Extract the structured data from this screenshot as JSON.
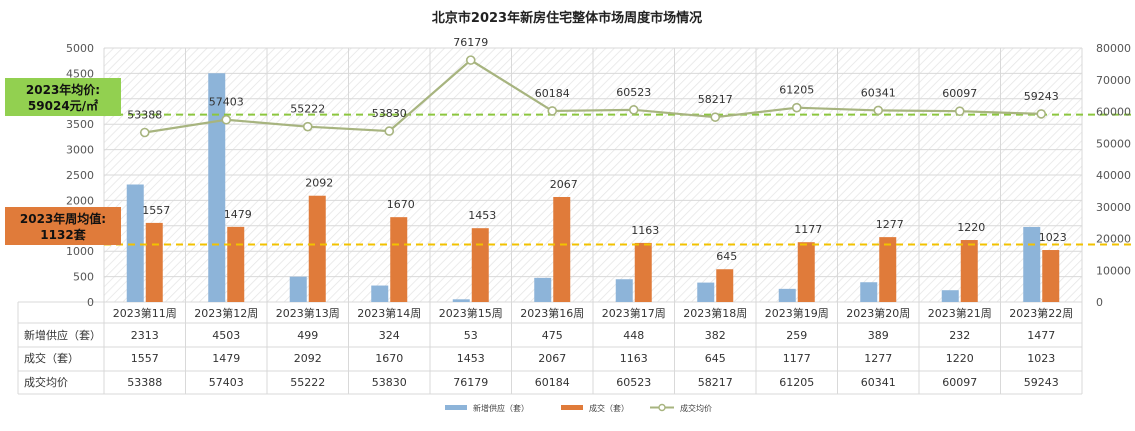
{
  "chart_data": {
    "type": "bar",
    "title": "北京市2023年新房住宅整体市场周度市场情况",
    "categories": [
      "2023第11周",
      "2023第12周",
      "2023第13周",
      "2023第14周",
      "2023第15周",
      "2023第16周",
      "2023第17周",
      "2023第18周",
      "2023第19周",
      "2023第20周",
      "2023第21周",
      "2023第22周"
    ],
    "series": [
      {
        "name": "新增供应（套）",
        "kind": "bar",
        "axis": "left",
        "color": "#8DB4D9",
        "values": [
          2313,
          4503,
          499,
          324,
          53,
          475,
          448,
          382,
          259,
          389,
          232,
          1477
        ]
      },
      {
        "name": "成交（套）",
        "kind": "bar",
        "axis": "left",
        "color": "#E07B3A",
        "values": [
          1557,
          1479,
          2092,
          1670,
          1453,
          2067,
          1163,
          645,
          1177,
          1277,
          1220,
          1023
        ]
      },
      {
        "name": "成交均价",
        "kind": "line",
        "axis": "right",
        "color": "#A7B47F",
        "values": [
          53388,
          57403,
          55222,
          53830,
          76179,
          60184,
          60523,
          58217,
          61205,
          60341,
          60097,
          59243
        ]
      }
    ],
    "y_left": {
      "min": 0,
      "max": 5000,
      "ticks": [
        0,
        500,
        1000,
        1500,
        2000,
        2500,
        3000,
        3500,
        4000,
        4500,
        5000
      ]
    },
    "y_right": {
      "min": 0,
      "max": 80000,
      "ticks": [
        0,
        10000,
        20000,
        30000,
        40000,
        50000,
        60000,
        70000,
        80000
      ]
    },
    "reference_lines": [
      {
        "axis": "right",
        "value": 59024,
        "color": "#8CC63F",
        "label_line1": "2023年均价:",
        "label_line2": "59024元/㎡",
        "label_bg": "#92D050"
      },
      {
        "axis": "left",
        "value": 1132,
        "color": "#F2C200",
        "label_line1": "2023年周均值:",
        "label_line2": "1132套",
        "label_bg": "#E07B3A"
      }
    ],
    "data_labels": {
      "series_index": [
        1,
        2
      ]
    },
    "table": {
      "rows": [
        {
          "label": "新增供应（套）",
          "values": [
            2313,
            4503,
            499,
            324,
            53,
            475,
            448,
            382,
            259,
            389,
            232,
            1477
          ]
        },
        {
          "label": "成交（套）",
          "values": [
            1557,
            1479,
            2092,
            1670,
            1453,
            2067,
            1163,
            645,
            1177,
            1277,
            1220,
            1023
          ]
        },
        {
          "label": "成交均价",
          "values": [
            53388,
            57403,
            55222,
            53830,
            76179,
            60184,
            60523,
            58217,
            61205,
            60341,
            60097,
            59243
          ]
        }
      ]
    },
    "legend": {
      "position": "bottom",
      "items": [
        "新增供应（套）",
        "成交（套）",
        "成交均价"
      ]
    },
    "grid": true
  }
}
